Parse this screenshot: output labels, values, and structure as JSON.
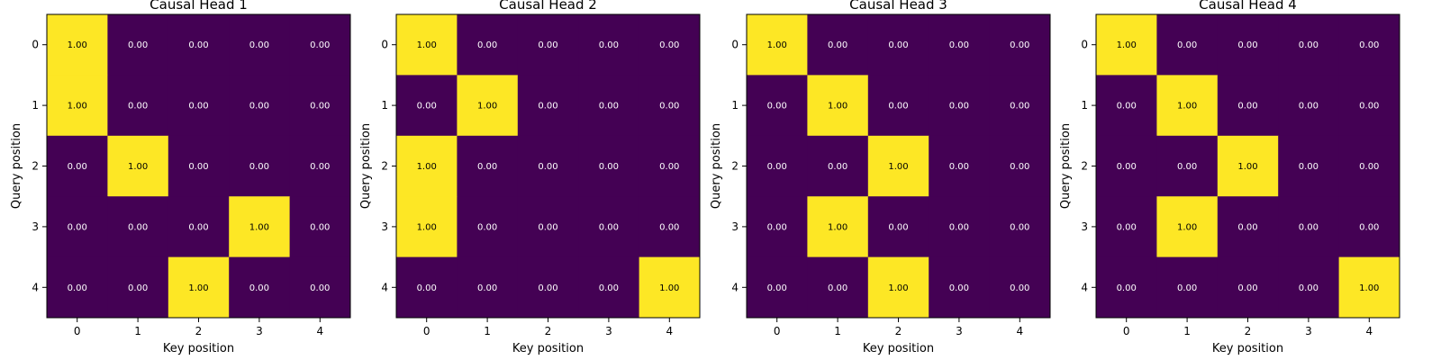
{
  "chart_data": [
    {
      "type": "heatmap",
      "title": "Causal Head 1",
      "xlabel": "Key position",
      "ylabel": "Query position",
      "x_ticks": [
        "0",
        "1",
        "2",
        "3",
        "4"
      ],
      "y_ticks": [
        "0",
        "1",
        "2",
        "3",
        "4"
      ],
      "value_range": [
        0,
        1
      ],
      "grid": false,
      "colormap": [
        "#440154",
        "#fde725"
      ],
      "values": [
        [
          1.0,
          0.0,
          0.0,
          0.0,
          0.0
        ],
        [
          1.0,
          0.0,
          0.0,
          0.0,
          0.0
        ],
        [
          0.0,
          1.0,
          0.0,
          0.0,
          0.0
        ],
        [
          0.0,
          0.0,
          0.0,
          1.0,
          0.0
        ],
        [
          0.0,
          0.0,
          1.0,
          0.0,
          0.0
        ]
      ],
      "cell_labels": [
        [
          "1.00",
          "0.00",
          "0.00",
          "0.00",
          "0.00"
        ],
        [
          "1.00",
          "0.00",
          "0.00",
          "0.00",
          "0.00"
        ],
        [
          "0.00",
          "1.00",
          "0.00",
          "0.00",
          "0.00"
        ],
        [
          "0.00",
          "0.00",
          "0.00",
          "1.00",
          "0.00"
        ],
        [
          "0.00",
          "0.00",
          "1.00",
          "0.00",
          "0.00"
        ]
      ]
    },
    {
      "type": "heatmap",
      "title": "Causal Head 2",
      "xlabel": "Key position",
      "ylabel": "Query position",
      "x_ticks": [
        "0",
        "1",
        "2",
        "3",
        "4"
      ],
      "y_ticks": [
        "0",
        "1",
        "2",
        "3",
        "4"
      ],
      "value_range": [
        0,
        1
      ],
      "grid": false,
      "colormap": [
        "#440154",
        "#fde725"
      ],
      "values": [
        [
          1.0,
          0.0,
          0.0,
          0.0,
          0.0
        ],
        [
          0.0,
          1.0,
          0.0,
          0.0,
          0.0
        ],
        [
          1.0,
          0.0,
          0.0,
          0.0,
          0.0
        ],
        [
          1.0,
          0.0,
          0.0,
          0.0,
          0.0
        ],
        [
          0.0,
          0.0,
          0.0,
          0.0,
          1.0
        ]
      ],
      "cell_labels": [
        [
          "1.00",
          "0.00",
          "0.00",
          "0.00",
          "0.00"
        ],
        [
          "0.00",
          "1.00",
          "0.00",
          "0.00",
          "0.00"
        ],
        [
          "1.00",
          "0.00",
          "0.00",
          "0.00",
          "0.00"
        ],
        [
          "1.00",
          "0.00",
          "0.00",
          "0.00",
          "0.00"
        ],
        [
          "0.00",
          "0.00",
          "0.00",
          "0.00",
          "1.00"
        ]
      ]
    },
    {
      "type": "heatmap",
      "title": "Causal Head 3",
      "xlabel": "Key position",
      "ylabel": "Query position",
      "x_ticks": [
        "0",
        "1",
        "2",
        "3",
        "4"
      ],
      "y_ticks": [
        "0",
        "1",
        "2",
        "3",
        "4"
      ],
      "value_range": [
        0,
        1
      ],
      "grid": false,
      "colormap": [
        "#440154",
        "#fde725"
      ],
      "values": [
        [
          1.0,
          0.0,
          0.0,
          0.0,
          0.0
        ],
        [
          0.0,
          1.0,
          0.0,
          0.0,
          0.0
        ],
        [
          0.0,
          0.0,
          1.0,
          0.0,
          0.0
        ],
        [
          0.0,
          1.0,
          0.0,
          0.0,
          0.0
        ],
        [
          0.0,
          0.0,
          1.0,
          0.0,
          0.0
        ]
      ],
      "cell_labels": [
        [
          "1.00",
          "0.00",
          "0.00",
          "0.00",
          "0.00"
        ],
        [
          "0.00",
          "1.00",
          "0.00",
          "0.00",
          "0.00"
        ],
        [
          "0.00",
          "0.00",
          "1.00",
          "0.00",
          "0.00"
        ],
        [
          "0.00",
          "1.00",
          "0.00",
          "0.00",
          "0.00"
        ],
        [
          "0.00",
          "0.00",
          "1.00",
          "0.00",
          "0.00"
        ]
      ]
    },
    {
      "type": "heatmap",
      "title": "Causal Head 4",
      "xlabel": "Key position",
      "ylabel": "Query position",
      "x_ticks": [
        "0",
        "1",
        "2",
        "3",
        "4"
      ],
      "y_ticks": [
        "0",
        "1",
        "2",
        "3",
        "4"
      ],
      "value_range": [
        0,
        1
      ],
      "grid": false,
      "colormap": [
        "#440154",
        "#fde725"
      ],
      "values": [
        [
          1.0,
          0.0,
          0.0,
          0.0,
          0.0
        ],
        [
          0.0,
          1.0,
          0.0,
          0.0,
          0.0
        ],
        [
          0.0,
          0.0,
          1.0,
          0.0,
          0.0
        ],
        [
          0.0,
          1.0,
          0.0,
          0.0,
          0.0
        ],
        [
          0.0,
          0.0,
          0.0,
          0.0,
          1.0
        ]
      ],
      "cell_labels": [
        [
          "1.00",
          "0.00",
          "0.00",
          "0.00",
          "0.00"
        ],
        [
          "0.00",
          "1.00",
          "0.00",
          "0.00",
          "0.00"
        ],
        [
          "0.00",
          "0.00",
          "1.00",
          "0.00",
          "0.00"
        ],
        [
          "0.00",
          "1.00",
          "0.00",
          "0.00",
          "0.00"
        ],
        [
          "0.00",
          "0.00",
          "0.00",
          "0.00",
          "1.00"
        ]
      ]
    }
  ]
}
